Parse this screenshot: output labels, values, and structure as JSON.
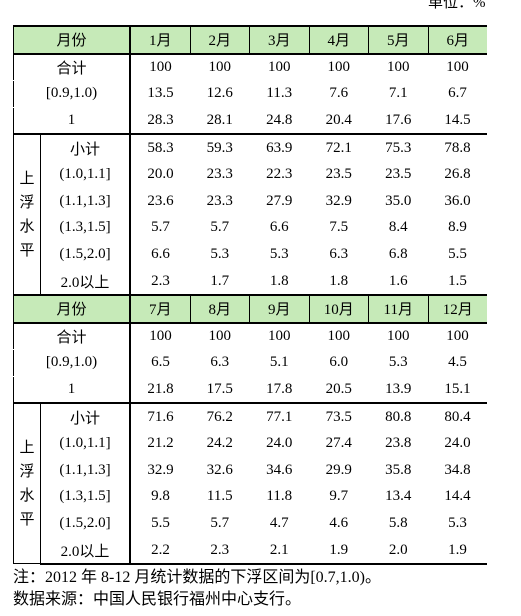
{
  "unit": "单位：%",
  "tables": [
    {
      "header": [
        "月份",
        "1月",
        "2月",
        "3月",
        "4月",
        "5月",
        "6月"
      ],
      "rows": [
        {
          "label": "合计",
          "values": [
            "100",
            "100",
            "100",
            "100",
            "100",
            "100"
          ]
        },
        {
          "label": "[0.9,1.0)",
          "values": [
            "13.5",
            "12.6",
            "11.3",
            "7.6",
            "7.1",
            "6.7"
          ]
        },
        {
          "label": "1",
          "values": [
            "28.3",
            "28.1",
            "24.8",
            "20.4",
            "17.6",
            "14.5"
          ]
        }
      ],
      "group_label": "上浮水平",
      "group_rows": [
        {
          "label": "小计",
          "values": [
            "58.3",
            "59.3",
            "63.9",
            "72.1",
            "75.3",
            "78.8"
          ]
        },
        {
          "label": "(1.0,1.1]",
          "values": [
            "20.0",
            "23.3",
            "22.3",
            "23.5",
            "23.5",
            "26.8"
          ]
        },
        {
          "label": "(1.1,1.3]",
          "values": [
            "23.6",
            "23.3",
            "27.9",
            "32.9",
            "35.0",
            "36.0"
          ]
        },
        {
          "label": "(1.3,1.5]",
          "values": [
            "5.7",
            "5.7",
            "6.6",
            "7.5",
            "8.4",
            "8.9"
          ]
        },
        {
          "label": "(1.5,2.0]",
          "values": [
            "6.6",
            "5.3",
            "5.3",
            "6.3",
            "6.8",
            "5.5"
          ]
        },
        {
          "label": "2.0以上",
          "values": [
            "2.3",
            "1.7",
            "1.8",
            "1.8",
            "1.6",
            "1.5"
          ]
        }
      ]
    },
    {
      "header": [
        "月份",
        "7月",
        "8月",
        "9月",
        "10月",
        "11月",
        "12月"
      ],
      "rows": [
        {
          "label": "合计",
          "values": [
            "100",
            "100",
            "100",
            "100",
            "100",
            "100"
          ]
        },
        {
          "label": "[0.9,1.0)",
          "values": [
            "6.5",
            "6.3",
            "5.1",
            "6.0",
            "5.3",
            "4.5"
          ]
        },
        {
          "label": "1",
          "values": [
            "21.8",
            "17.5",
            "17.8",
            "20.5",
            "13.9",
            "15.1"
          ]
        }
      ],
      "group_label": "上浮水平",
      "group_rows": [
        {
          "label": "小计",
          "values": [
            "71.6",
            "76.2",
            "77.1",
            "73.5",
            "80.8",
            "80.4"
          ]
        },
        {
          "label": "(1.0,1.1]",
          "values": [
            "21.2",
            "24.2",
            "24.0",
            "27.4",
            "23.8",
            "24.0"
          ]
        },
        {
          "label": "(1.1,1.3]",
          "values": [
            "32.9",
            "32.6",
            "34.6",
            "29.9",
            "35.8",
            "34.8"
          ]
        },
        {
          "label": "(1.3,1.5]",
          "values": [
            "9.8",
            "11.5",
            "11.8",
            "9.7",
            "13.4",
            "14.4"
          ]
        },
        {
          "label": "(1.5,2.0]",
          "values": [
            "5.5",
            "5.7",
            "4.7",
            "4.6",
            "5.8",
            "5.3"
          ]
        },
        {
          "label": "2.0以上",
          "values": [
            "2.2",
            "2.3",
            "2.1",
            "1.9",
            "2.0",
            "1.9"
          ]
        }
      ]
    }
  ],
  "notes": [
    "注：2012 年 8-12 月统计数据的下浮区间为[0.7,1.0)。",
    "数据来源：中国人民银行福州中心支行。"
  ]
}
